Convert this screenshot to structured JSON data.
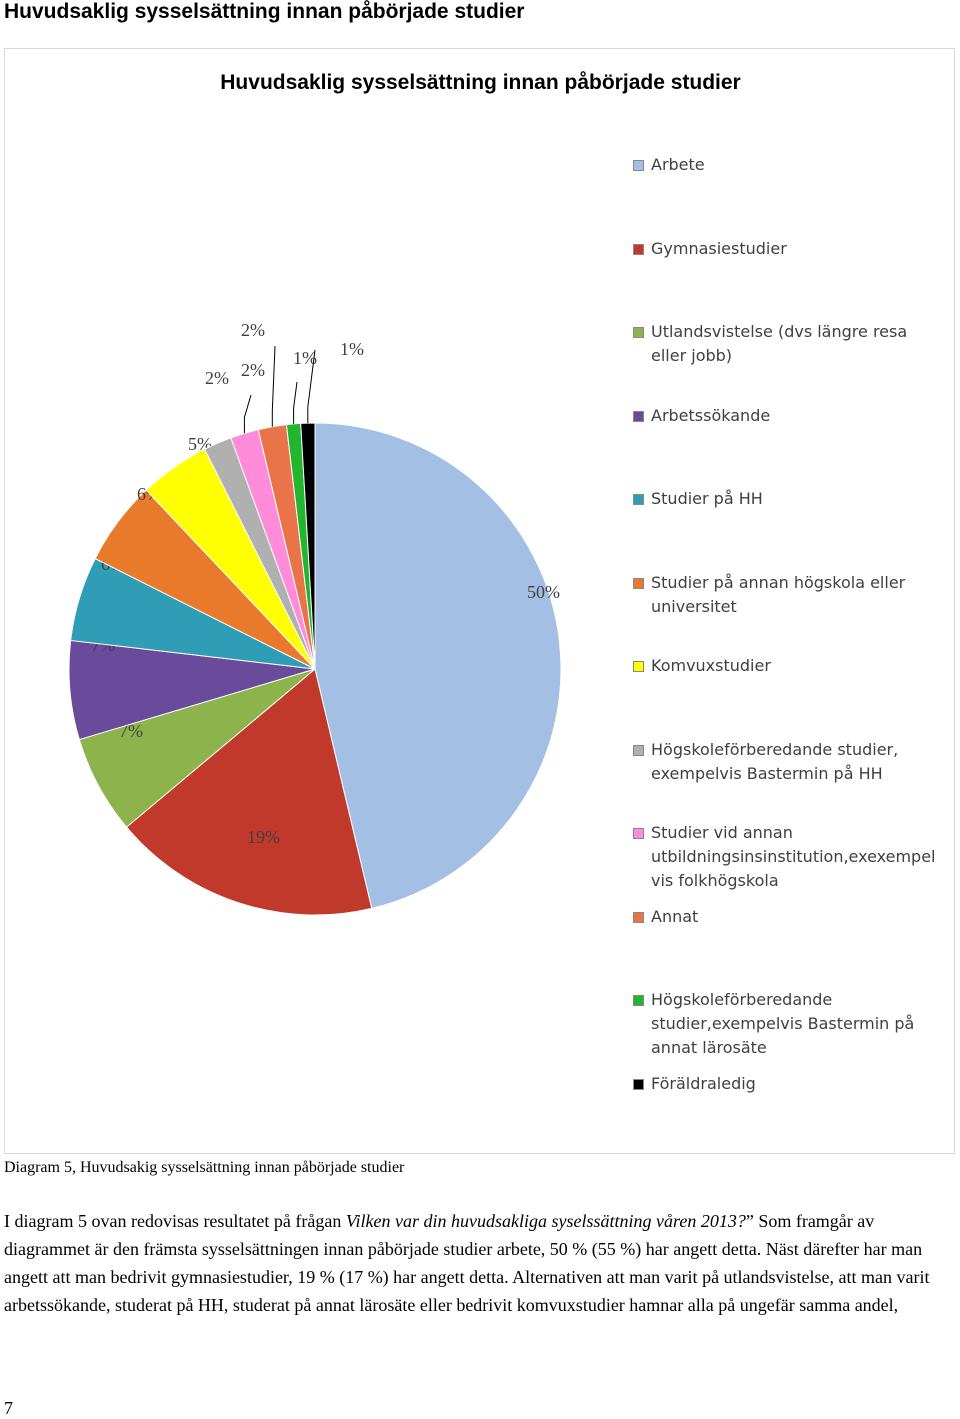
{
  "heading": "Huvudsaklig sysselsättning innan påbörjade studier",
  "chart_data": {
    "type": "pie",
    "title": "Huvudsaklig sysselsättning innan påbörjade studier",
    "slices": [
      {
        "name": "Arbete",
        "value": 50,
        "label": "50%",
        "color": "#A3BFE3"
      },
      {
        "name": "Gymnasiestudier",
        "value": 19,
        "label": "19%",
        "color": "#C0392B"
      },
      {
        "name": "Utlandsvistelse (dvs längre resa eller jobb)",
        "value": 7,
        "label": "7%",
        "color": "#8CB34C"
      },
      {
        "name": "Arbetssökande",
        "value": 7,
        "label": "7%",
        "color": "#6A4A9B"
      },
      {
        "name": "Studier på HH",
        "value": 6,
        "label": "6%",
        "color": "#2F9DB5"
      },
      {
        "name": "Studier på annan högskola eller universitet",
        "value": 6,
        "label": "6%",
        "color": "#E97A2B"
      },
      {
        "name": "Komvuxstudier",
        "value": 5,
        "label": "5%",
        "color": "#FFFF00"
      },
      {
        "name": "Högskoleförberedande studier, exempelvis Bastermin på HH",
        "value": 2,
        "label": "2%",
        "color": "#B0B0B0"
      },
      {
        "name": "Studier vid annan utbildningsinsinstitution,exexempel vis folkhögskola",
        "value": 2,
        "label": "2%",
        "color": "#FF8CD9"
      },
      {
        "name": "Annat",
        "value": 2,
        "label": "2%",
        "color": "#E9744A"
      },
      {
        "name": "Högskoleförberedande studier,exempelvis Bastermin på annat lärosäte",
        "value": 1,
        "label": "1%",
        "color": "#22B52E"
      },
      {
        "name": "Föräldraledig",
        "value": 1,
        "label": "1%",
        "color": "#000000"
      }
    ],
    "legend_position": "right"
  },
  "legend": [
    "Arbete",
    "Gymnasiestudier",
    "Utlandsvistelse (dvs längre resa eller jobb)",
    "Arbetssökande",
    "Studier på HH",
    "Studier på annan högskola eller universitet",
    "Komvuxstudier",
    "Högskoleförberedande studier, exempelvis Bastermin på HH",
    "Studier vid annan utbildningsinsinstitution,exexempel vis folkhögskola",
    "Annat",
    "Högskoleförberedande studier,exempelvis Bastermin på annat lärosäte",
    "Föräldraledig"
  ],
  "caption": "Diagram 5, Huvudsakig sysselsättning innan påbörjade studier",
  "body": {
    "line1_pre": "I diagram 5 ovan redovisas resultatet på frågan ",
    "line1_italic": "Vilken var din huvudsakliga syselssättning våren 2013?",
    "line1_post": "” ",
    "rest": "Som framgår av diagrammet är den främsta sysselsättningen innan påbörjade studier arbete, 50 % (55 %) har angett detta. Näst därefter har man angett att man bedrivit gymnasiestudier, 19 % (17 %) har angett detta. Alternativen att man varit på utlandsvistelse, att man varit arbetssökande, studerat på HH, studerat på annat lärosäte eller bedrivit komvuxstudier hamnar alla på ungefär samma andel,"
  },
  "page_number": "7"
}
